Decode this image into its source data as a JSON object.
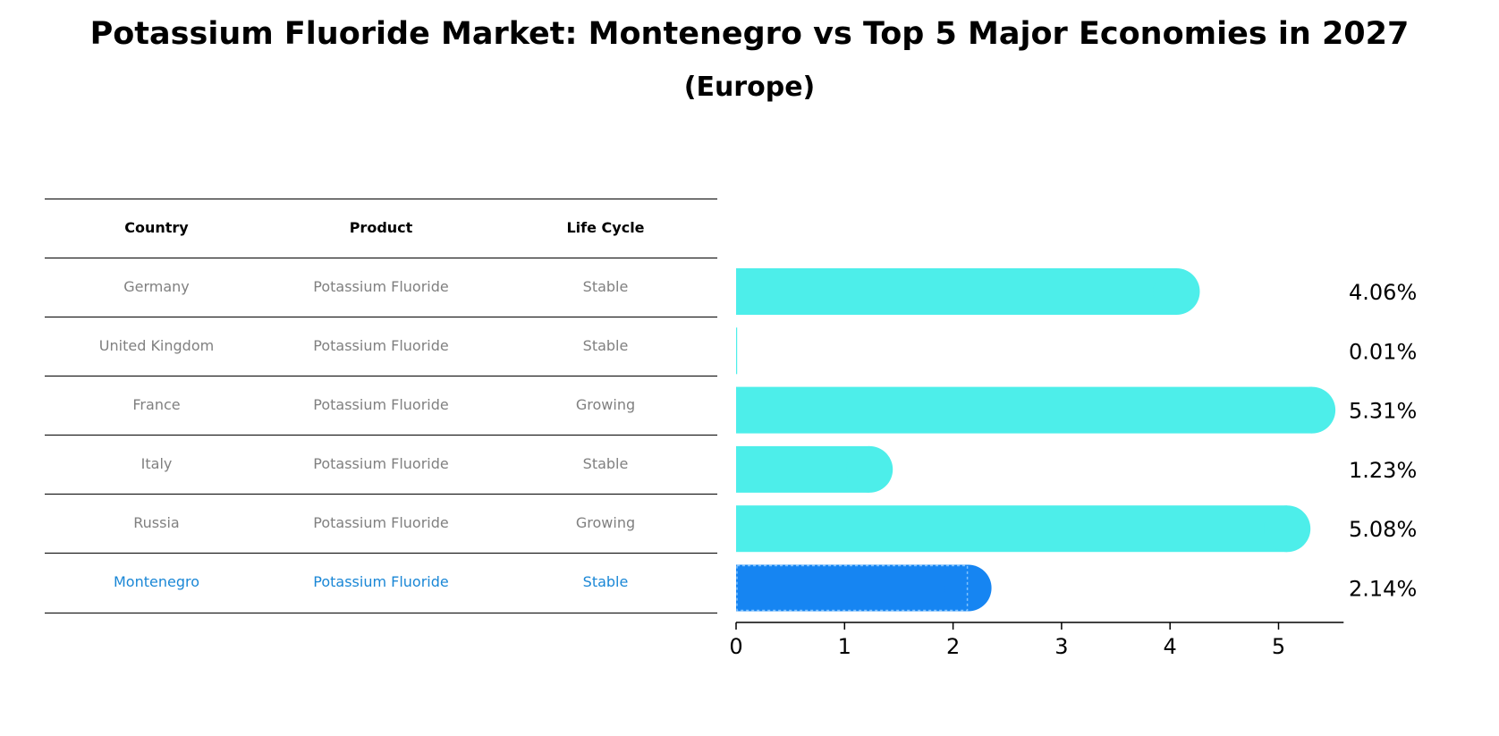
{
  "title": "Potassium Fluoride Market: Montenegro vs Top 5 Major Economies in 2027",
  "subtitle": "(Europe)",
  "table": {
    "headers": [
      "Country",
      "Product",
      "Life Cycle"
    ],
    "rows": [
      [
        "Germany",
        "Potassium Fluoride",
        "Stable"
      ],
      [
        "United Kingdom",
        "Potassium Fluoride",
        "Stable"
      ],
      [
        "France",
        "Potassium Fluoride",
        "Growing"
      ],
      [
        "Italy",
        "Potassium Fluoride",
        "Stable"
      ],
      [
        "Russia",
        "Potassium Fluoride",
        "Growing"
      ],
      [
        "Montenegro",
        "Potassium Fluoride",
        "Stable"
      ]
    ],
    "highlight_row": 5,
    "highlight_color": "#1a87d6"
  },
  "colors": {
    "bar": "#4deeea",
    "highlight_bar": "#1685f2"
  },
  "chart_data": {
    "type": "bar",
    "orientation": "horizontal",
    "categories": [
      "Germany",
      "United Kingdom",
      "France",
      "Italy",
      "Russia",
      "Montenegro"
    ],
    "values": [
      4.06,
      0.01,
      5.31,
      1.23,
      5.08,
      2.14
    ],
    "value_labels": [
      "4.06%",
      "0.01%",
      "5.31%",
      "1.23%",
      "5.08%",
      "2.14%"
    ],
    "xticks": [
      0,
      1,
      2,
      3,
      4,
      5
    ],
    "xlim": [
      0,
      5.6
    ],
    "highlight": "Montenegro",
    "grid": false
  }
}
